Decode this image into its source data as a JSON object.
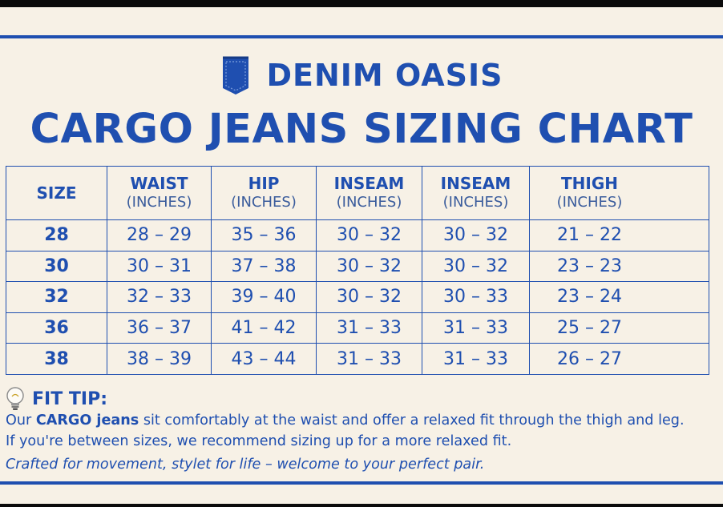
{
  "brand": {
    "name": "DENIM OASIS",
    "logo_icon": "jeans-pocket-icon"
  },
  "title": "CARGO JEANS SIZING CHART",
  "table": {
    "headers": [
      {
        "label": "SIZE",
        "unit": ""
      },
      {
        "label": "WAIST",
        "unit": "(INCHES)"
      },
      {
        "label": "HIP",
        "unit": "(INCHES)"
      },
      {
        "label": "INSEAM",
        "unit": "(INCHES)"
      },
      {
        "label": "INSEAM",
        "unit": "(INCHES)"
      },
      {
        "label": "THIGH",
        "unit": "(INCHES)"
      }
    ],
    "rows": [
      [
        "28",
        "28 – 29",
        "35 – 36",
        "30 – 32",
        "30 – 32",
        "21 – 22"
      ],
      [
        "30",
        "30 – 31",
        "37 – 38",
        "30 – 32",
        "30 – 32",
        "23 – 23"
      ],
      [
        "32",
        "32 – 33",
        "39 – 40",
        "30 – 32",
        "30 – 33",
        "23 – 24"
      ],
      [
        "36",
        "36 – 37",
        "41 – 42",
        "31 – 33",
        "31 – 33",
        "25 – 27"
      ],
      [
        "38",
        "38 – 39",
        "43 – 44",
        "31 – 33",
        "31 – 33",
        "26 – 27"
      ]
    ]
  },
  "fit_tip": {
    "icon": "lightbulb-icon",
    "heading": "FIT TIP:",
    "line1_before": "Our ",
    "line1_bold": "CARGO jeans",
    "line1_after": " sit comfortably at the waist and offer a relaxed fit through the thigh and leg.",
    "line2": "If you're between sizes, we recommend sizing up for a more relaxed fit."
  },
  "tagline": "Crafted for movement, stylet for life – welcome to your perfect pair.",
  "colors": {
    "primary": "#1f4fb0",
    "background": "#f7f1e6"
  }
}
